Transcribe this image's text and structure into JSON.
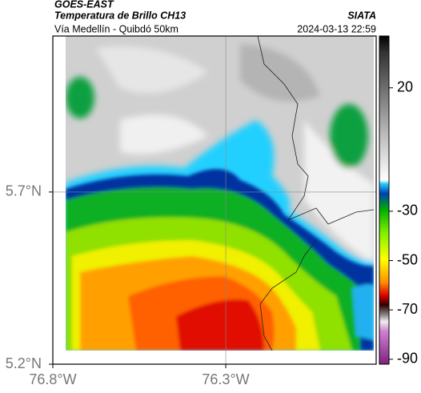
{
  "header": {
    "satellite": "GOES-EAST",
    "product": "Temperatura de Brillo CH13",
    "route": "Vía Medellín - Quibdó 50km",
    "agency": "SIATA",
    "timestamp": "2024-03-13 22:59"
  },
  "map": {
    "xlim": [
      -76.8,
      -75.865
    ],
    "ylim": [
      5.2,
      6.153
    ],
    "xticks": [
      {
        "value": -76.8,
        "label": "76.8°W"
      },
      {
        "value": -76.3,
        "label": "76.3°W"
      }
    ],
    "yticks": [
      {
        "value": 5.2,
        "label": "5.2°N"
      },
      {
        "value": 5.7,
        "label": "5.7°N"
      }
    ],
    "grid": true
  },
  "colorbar": {
    "lim": [
      41,
      -92
    ],
    "ticks": [
      20,
      -30,
      -50,
      -70,
      -90
    ]
  }
}
